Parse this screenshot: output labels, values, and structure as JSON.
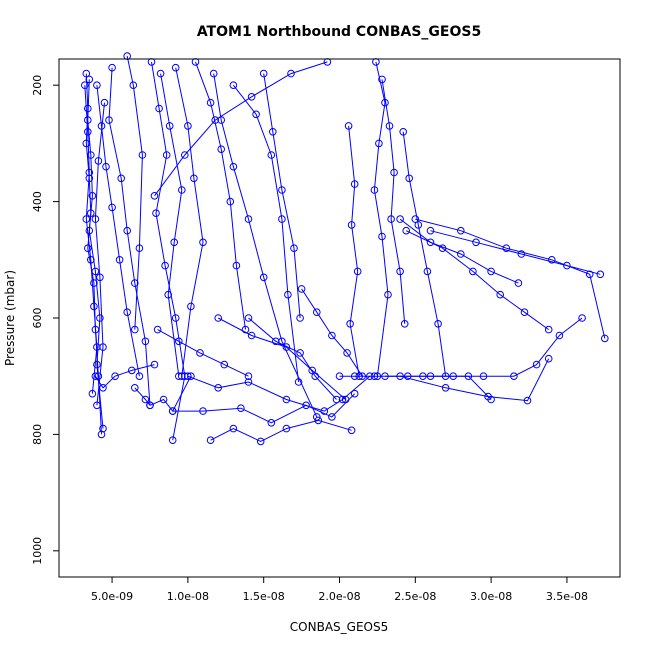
{
  "chart_data": {
    "type": "line",
    "title": "ATOM1 Northbound CONBAS_GEOS5",
    "xlabel": "CONBAS_GEOS5",
    "ylabel": "Pressure (mbar)",
    "xlim": [
      1.5e-09,
      3.85e-08
    ],
    "ylim": [
      1045,
      155
    ],
    "y_reversed": true,
    "x_ticks": [
      5e-09,
      1e-08,
      1.5e-08,
      2e-08,
      2.5e-08,
      3e-08,
      3.5e-08
    ],
    "x_tick_labels": [
      "5.0e-09",
      "1.0e-08",
      "1.5e-08",
      "2.0e-08",
      "2.5e-08",
      "3.0e-08",
      "3.5e-08"
    ],
    "y_ticks": [
      200,
      400,
      600,
      800,
      1000
    ],
    "y_tick_labels": [
      "200",
      "400",
      "600",
      "800",
      "1000"
    ],
    "grid": false,
    "color": "#0000ff",
    "series": [
      {
        "x": [
          3.3e-09,
          3.4e-09,
          3.3e-09,
          3.5e-09,
          3.6e-09,
          3.4e-09,
          3.8e-09,
          3.9e-09,
          4.1e-09,
          4.3e-09
        ],
        "y": [
          180,
          240,
          300,
          360,
          420,
          480,
          540,
          620,
          700,
          800
        ]
      },
      {
        "x": [
          3.5e-09,
          3.4e-09,
          3.6e-09,
          3.7e-09,
          3.5e-09,
          3.9e-09,
          4.2e-09,
          4e-09,
          4.4e-09
        ],
        "y": [
          190,
          260,
          320,
          390,
          450,
          520,
          600,
          680,
          790
        ]
      },
      {
        "x": [
          3.2e-09,
          3.4e-09,
          3.5e-09,
          3.3e-09,
          3.6e-09,
          3.8e-09,
          4e-09,
          3.7e-09
        ],
        "y": [
          200,
          280,
          350,
          430,
          500,
          580,
          650,
          730
        ]
      },
      {
        "x": [
          4e-09,
          4.3e-09,
          4.6e-09,
          5e-09,
          5.5e-09,
          6e-09,
          6.8e-09
        ],
        "y": [
          200,
          270,
          340,
          410,
          500,
          590,
          700
        ]
      },
      {
        "x": [
          4.5e-09,
          4.1e-09,
          3.9e-09,
          4.2e-09,
          4.4e-09,
          4e-09
        ],
        "y": [
          230,
          330,
          430,
          530,
          650,
          750
        ]
      },
      {
        "x": [
          5e-09,
          4.8e-09,
          5.6e-09,
          6e-09,
          6.5e-09,
          7.2e-09,
          7.5e-09
        ],
        "y": [
          170,
          260,
          360,
          450,
          540,
          640,
          750
        ]
      },
      {
        "x": [
          6e-09,
          6.4e-09,
          7e-09,
          6.8e-09,
          6.5e-09
        ],
        "y": [
          150,
          200,
          320,
          480,
          620
        ]
      },
      {
        "x": [
          7.6e-09,
          8.1e-09,
          8.6e-09,
          7.9e-09,
          8.5e-09,
          9.2e-09,
          9.8e-09,
          9e-09
        ],
        "y": [
          160,
          240,
          320,
          420,
          510,
          600,
          700,
          810
        ]
      },
      {
        "x": [
          8.2e-09,
          8.8e-09,
          9.6e-09,
          9.1e-09,
          8.7e-09,
          9.4e-09
        ],
        "y": [
          180,
          270,
          380,
          470,
          560,
          700
        ]
      },
      {
        "x": [
          9.2e-09,
          1e-08,
          1.04e-08,
          1.1e-08,
          1.02e-08,
          9.6e-09
        ],
        "y": [
          170,
          270,
          360,
          470,
          580,
          700
        ]
      },
      {
        "x": [
          1.05e-08,
          1.15e-08,
          1.22e-08,
          1.28e-08,
          1.32e-08,
          1.38e-08
        ],
        "y": [
          160,
          230,
          310,
          400,
          510,
          620
        ]
      },
      {
        "x": [
          1.17e-08,
          1.22e-08,
          1.3e-08,
          1.4e-08,
          1.5e-08,
          1.62e-08,
          1.85e-08
        ],
        "y": [
          180,
          260,
          340,
          430,
          530,
          640,
          770
        ]
      },
      {
        "x": [
          1.3e-08,
          1.45e-08,
          1.55e-08,
          1.62e-08,
          1.66e-08,
          1.73e-08
        ],
        "y": [
          200,
          250,
          320,
          430,
          560,
          710
        ]
      },
      {
        "x": [
          1.5e-08,
          1.56e-08,
          1.62e-08,
          1.7e-08,
          1.74e-08
        ],
        "y": [
          180,
          280,
          380,
          480,
          600
        ]
      },
      {
        "x": [
          1e-08,
          1.2e-08,
          1.4e-08,
          1.65e-08,
          1.9e-08,
          2.02e-08,
          2.2e-08
        ],
        "y": [
          700,
          720,
          710,
          740,
          760,
          740,
          700
        ]
      },
      {
        "x": [
          9e-09,
          1.1e-08,
          1.35e-08,
          1.55e-08,
          1.78e-08,
          1.95e-08,
          2.1e-08
        ],
        "y": [
          760,
          760,
          755,
          780,
          750,
          770,
          730
        ]
      },
      {
        "x": [
          1.15e-08,
          1.3e-08,
          1.48e-08,
          1.65e-08,
          1.86e-08,
          2.08e-08
        ],
        "y": [
          810,
          790,
          812,
          790,
          776,
          793
        ]
      },
      {
        "x": [
          2.24e-08,
          2.3e-08,
          2.26e-08,
          2.23e-08,
          2.28e-08,
          2.32e-08,
          2.25e-08
        ],
        "y": [
          160,
          230,
          300,
          380,
          460,
          560,
          700
        ]
      },
      {
        "x": [
          2.28e-08,
          2.33e-08,
          2.36e-08,
          2.34e-08,
          2.4e-08,
          2.43e-08
        ],
        "y": [
          190,
          270,
          350,
          430,
          520,
          610
        ]
      },
      {
        "x": [
          2.42e-08,
          2.46e-08,
          2.52e-08,
          2.58e-08,
          2.65e-08,
          2.7e-08
        ],
        "y": [
          280,
          360,
          440,
          520,
          610,
          700
        ]
      },
      {
        "x": [
          2e-08,
          2.1e-08,
          2.23e-08,
          2.45e-08,
          2.6e-08,
          2.85e-08,
          3e-08
        ],
        "y": [
          700,
          700,
          700,
          700,
          700,
          700,
          740
        ]
      },
      {
        "x": [
          2.3e-08,
          2.55e-08,
          2.75e-08,
          2.95e-08,
          3.15e-08,
          3.3e-08,
          3.45e-08,
          3.6e-08
        ],
        "y": [
          700,
          700,
          700,
          700,
          700,
          680,
          630,
          600
        ]
      },
      {
        "x": [
          2.44e-08,
          2.68e-08,
          2.88e-08,
          3.06e-08,
          3.22e-08,
          3.38e-08
        ],
        "y": [
          450,
          480,
          520,
          560,
          590,
          620
        ]
      },
      {
        "x": [
          2.4e-08,
          2.6e-08,
          2.8e-08,
          3e-08,
          3.18e-08
        ],
        "y": [
          430,
          470,
          490,
          520,
          540
        ]
      },
      {
        "x": [
          2.5e-08,
          2.8e-08,
          3.1e-08,
          3.4e-08,
          3.65e-08,
          3.75e-08
        ],
        "y": [
          430,
          450,
          480,
          500,
          525,
          635
        ]
      },
      {
        "x": [
          2.6e-08,
          2.9e-08,
          3.2e-08,
          3.5e-08,
          3.72e-08
        ],
        "y": [
          450,
          470,
          490,
          510,
          525
        ]
      },
      {
        "x": [
          2.4e-08,
          2.7e-08,
          2.98e-08,
          3.24e-08,
          3.38e-08
        ],
        "y": [
          700,
          720,
          735,
          742,
          670
        ]
      },
      {
        "x": [
          2.06e-08,
          2.1e-08,
          2.08e-08,
          2.12e-08,
          2.07e-08,
          2.13e-08
        ],
        "y": [
          270,
          370,
          440,
          520,
          610,
          700
        ]
      },
      {
        "x": [
          1.75e-08,
          1.85e-08,
          1.95e-08,
          2.05e-08,
          2.15e-08
        ],
        "y": [
          550,
          590,
          630,
          660,
          700
        ]
      },
      {
        "x": [
          6.5e-09,
          7.2e-09,
          7.5e-09,
          8.4e-09,
          9e-09,
          1.02e-08
        ],
        "y": [
          720,
          740,
          750,
          740,
          760,
          700
        ]
      },
      {
        "x": [
          8e-09,
          9.4e-09,
          1.08e-08,
          1.24e-08,
          1.4e-08
        ],
        "y": [
          620,
          640,
          660,
          680,
          700
        ]
      },
      {
        "x": [
          1.4e-08,
          1.58e-08,
          1.74e-08,
          1.84e-08,
          1.98e-08
        ],
        "y": [
          600,
          640,
          660,
          700,
          740
        ]
      },
      {
        "x": [
          1.2e-08,
          1.42e-08,
          1.65e-08,
          1.82e-08,
          2.04e-08
        ],
        "y": [
          600,
          630,
          650,
          690,
          740
        ]
      },
      {
        "x": [
          7.8e-09,
          9.8e-09,
          1.18e-08,
          1.42e-08,
          1.68e-08,
          1.92e-08
        ],
        "y": [
          390,
          320,
          260,
          220,
          180,
          160
        ]
      },
      {
        "x": [
          3.9e-09,
          4.4e-09,
          5.2e-09,
          6.3e-09,
          7.8e-09
        ],
        "y": [
          700,
          720,
          700,
          690,
          680
        ]
      }
    ]
  }
}
